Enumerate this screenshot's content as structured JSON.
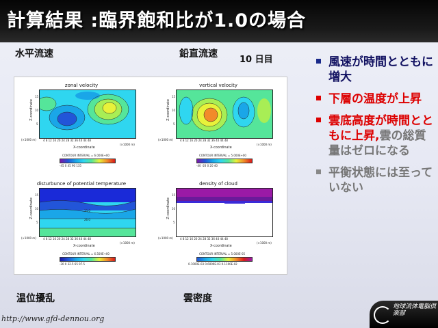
{
  "slide": {
    "title": "計算結果 :臨界飽和比が1.0の場合",
    "day_label": "10 日目"
  },
  "captions": {
    "zonal": "水平流速",
    "vertical": "鉛直流速",
    "temperature": "温位擾乱",
    "cloud": "雲密度"
  },
  "panels": [
    {
      "title": "zonal velocity",
      "ylabel": "Z-coordinate",
      "xlabel": "X-coordinate",
      "xticks": "4   8   12   16   20   24   28   32   36   40   44   48",
      "yticks": [
        "15",
        "10",
        "5"
      ],
      "xunit": "(×1000 m)",
      "yunit": "(×1000 m)",
      "contour": "CONTOUR INTERVAL = 6.000E+00",
      "cbticks": "-45   0   45   90   135"
    },
    {
      "title": "vertical velocity",
      "ylabel": "Z-coordinate",
      "xlabel": "X-coordinate",
      "xticks": "4   8   12   16   20   24   28   32   36   40   44   48",
      "yticks": [
        "15",
        "10",
        "5"
      ],
      "xunit": "(×1000 m)",
      "yunit": "(×1000 m)",
      "contour": "CONTOUR INTERVAL = 5.000E+00",
      "cbticks": "-40  -20   0   20   40"
    },
    {
      "title": "disturbunce of potential temperature",
      "ylabel": "Z-coordinate",
      "xlabel": "X-coordinate",
      "xticks": "4   8   12   16   20   24   28   32   36   40   44   48",
      "yticks": [
        "15",
        "10",
        "5"
      ],
      "xunit": "(×1000 m)",
      "yunit": "(×1000 m)",
      "contour": "CONTOUR INTERVAL = 6.500E+00",
      "cbticks": "-30   0   32.5   65   97.5",
      "contour_labels": [
        "13.0",
        "26.0"
      ]
    },
    {
      "title": "density of cloud",
      "ylabel": "Z-coordinate",
      "xlabel": "X-coordinate",
      "xticks": "4   8   12   16   20   24   28   32   36   40   44   48",
      "yticks": [
        "15",
        "10",
        "5"
      ],
      "xunit": "(×1000 m)",
      "yunit": "(×1000 m)",
      "contour": "CONTOUR INTERVAL = 5.000E-05",
      "cbticks": "0.1000E-03  0.6000E-03  0.1100E-02"
    }
  ],
  "bullets": [
    {
      "text": "風速が時間とともに増大",
      "color": "#101060",
      "mark": "#1a2a8a"
    },
    {
      "text": "下層の温度が上昇",
      "color": "#dd0000",
      "mark": "#dd0000"
    },
    {
      "text": "雲底高度が時間とともに上昇,",
      "color": "#dd0000",
      "mark": "#dd0000",
      "suffix": "雲の総質量はゼロになる",
      "suffix_color": "#777777"
    },
    {
      "text": "平衡状態には至っていない",
      "color": "#777777",
      "mark": "#888888"
    }
  ],
  "footer": {
    "url": "http://www.gfd-dennou.org",
    "logo_text": "地球流体電脳倶楽部"
  },
  "colors": {
    "title_bg": "#111111",
    "title_fg": "#ffffff"
  }
}
